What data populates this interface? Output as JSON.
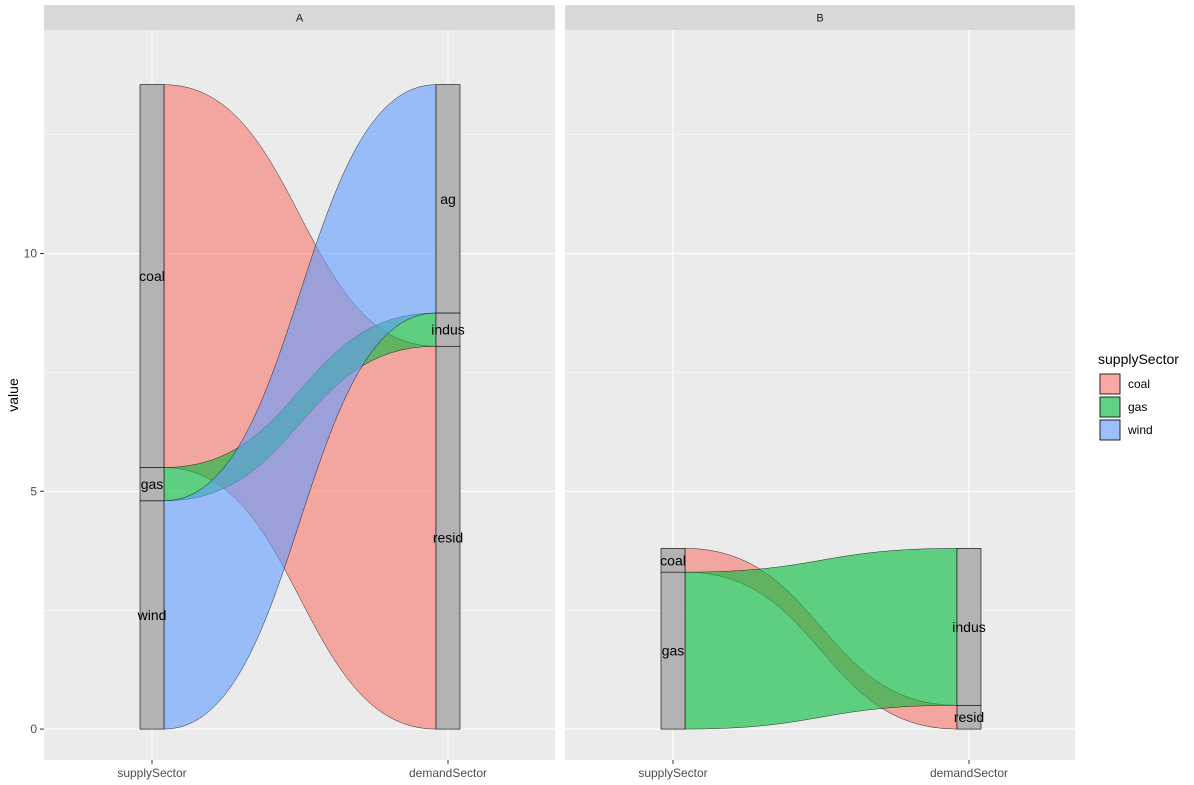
{
  "chart_data": {
    "type": "alluvial",
    "ylabel": "value",
    "xlabel": "",
    "axes": [
      "supplySector",
      "demandSector"
    ],
    "ylim": [
      -0.65,
      14.7
    ],
    "yticks": [
      0,
      5,
      10
    ],
    "grid": true,
    "legend": {
      "title": "supplySector",
      "position": "right",
      "entries": [
        {
          "name": "coal",
          "color": "#F8766D"
        },
        {
          "name": "gas",
          "color": "#00BA38"
        },
        {
          "name": "wind",
          "color": "#619CFF"
        }
      ]
    },
    "panels": [
      {
        "label": "A",
        "supply_order": [
          "wind",
          "gas",
          "coal"
        ],
        "demand_order": [
          "resid",
          "indus",
          "ag"
        ],
        "flows": [
          {
            "supply": "coal",
            "demand": "resid",
            "value": 8.05
          },
          {
            "supply": "coal",
            "demand": "ag",
            "value": 0.0
          },
          {
            "supply": "gas",
            "demand": "indus",
            "value": 0.7
          },
          {
            "supply": "wind",
            "demand": "ag",
            "value": 4.8
          }
        ]
      },
      {
        "label": "B",
        "supply_order": [
          "gas",
          "coal"
        ],
        "demand_order": [
          "resid",
          "indus"
        ],
        "flows": [
          {
            "supply": "coal",
            "demand": "resid",
            "value": 0.5
          },
          {
            "supply": "gas",
            "demand": "indus",
            "value": 3.3
          }
        ]
      }
    ]
  }
}
